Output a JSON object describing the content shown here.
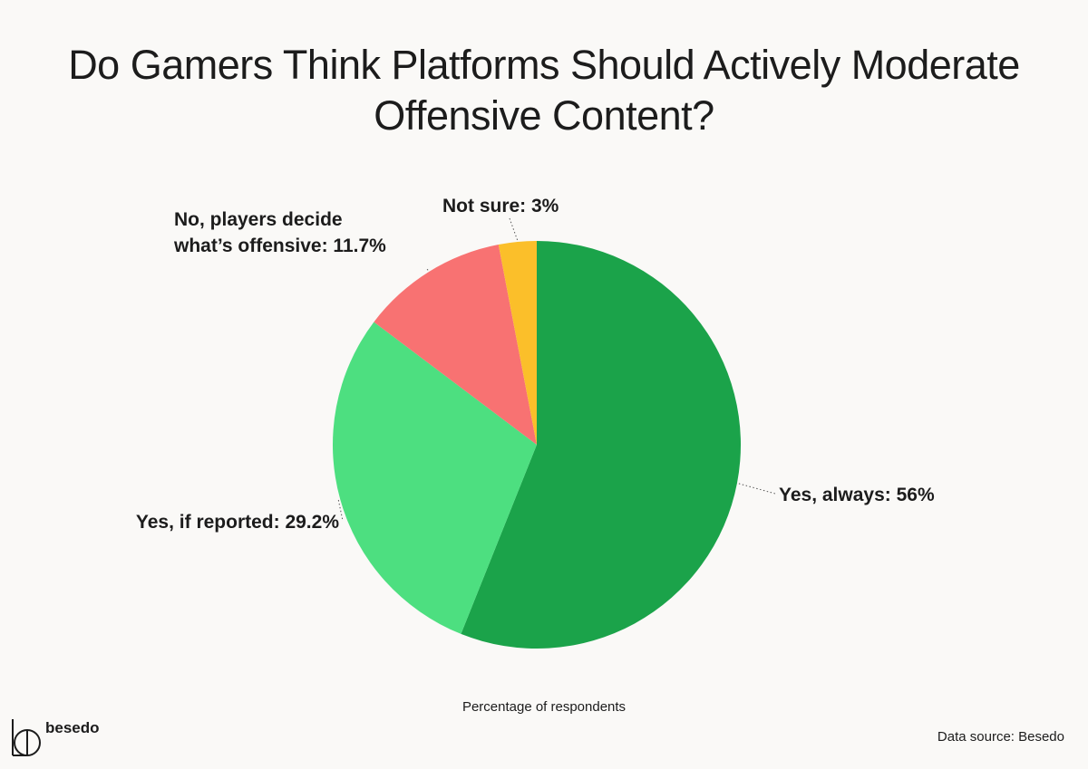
{
  "title": {
    "line1": "Do Gamers Think Platforms Should Actively Moderate",
    "line2": "Offensive Content?"
  },
  "chart_data": {
    "type": "pie",
    "slices": [
      {
        "label": "Yes, always",
        "value": 56,
        "color": "#1BA34A",
        "label_text": "Yes, always: 56%"
      },
      {
        "label": "Yes, if reported",
        "value": 29.2,
        "color": "#4DDF80",
        "label_text": "Yes, if reported: 29.2%"
      },
      {
        "label": "No, players decide what’s offensive",
        "value": 11.7,
        "color": "#F87272",
        "label_lines": [
          "No, players decide",
          "what’s offensive: 11.7%"
        ]
      },
      {
        "label": "Not sure",
        "value": 3,
        "color": "#FBBF2A",
        "label_text": "Not sure: 3%"
      }
    ],
    "start_angle": "12 o'clock",
    "direction": "clockwise"
  },
  "note": "Percentage of respondents",
  "logo_text": "besedo",
  "source": "Data source: Besedo"
}
